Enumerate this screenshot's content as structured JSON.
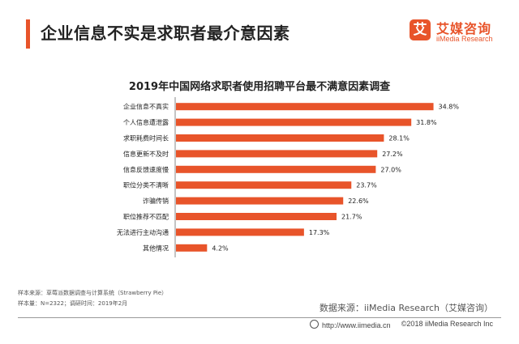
{
  "header": {
    "title": "企业信息不实是求职者最介意因素",
    "logo": {
      "mark": "艾",
      "name_cn": "艾媒咨询",
      "name_en": "iiMedia Research"
    }
  },
  "colors": {
    "accent": "#e8542a",
    "bar": "#e8542a"
  },
  "chart_data": {
    "type": "bar",
    "orientation": "horizontal",
    "title": "2019年中国网络求职者使用招聘平台最不满意因素调查",
    "categories": [
      "企业信息不真实",
      "个人信息遭泄露",
      "求职耗费时间长",
      "信息更新不及时",
      "信息反馈速度慢",
      "职位分类不清晰",
      "诈骗传销",
      "职位推荐不匹配",
      "无法进行主动沟通",
      "其他情况"
    ],
    "values": [
      34.8,
      31.8,
      28.1,
      27.2,
      27.0,
      23.7,
      22.6,
      21.7,
      17.3,
      4.2
    ],
    "value_suffix": "%",
    "xlim": [
      0,
      40
    ],
    "grid": false,
    "legend": "none"
  },
  "footnotes": {
    "line1": "样本来源：草莓派数据调查与计算系统（Strawberry Pie）",
    "line2": "样本量：N=2322；调研时间：2019年2月"
  },
  "source": "数据来源：iiMedia Research（艾媒咨询）",
  "footer": {
    "url": "http://www.iimedia.cn",
    "copyright": "©2018  iiMedia Research  Inc"
  }
}
